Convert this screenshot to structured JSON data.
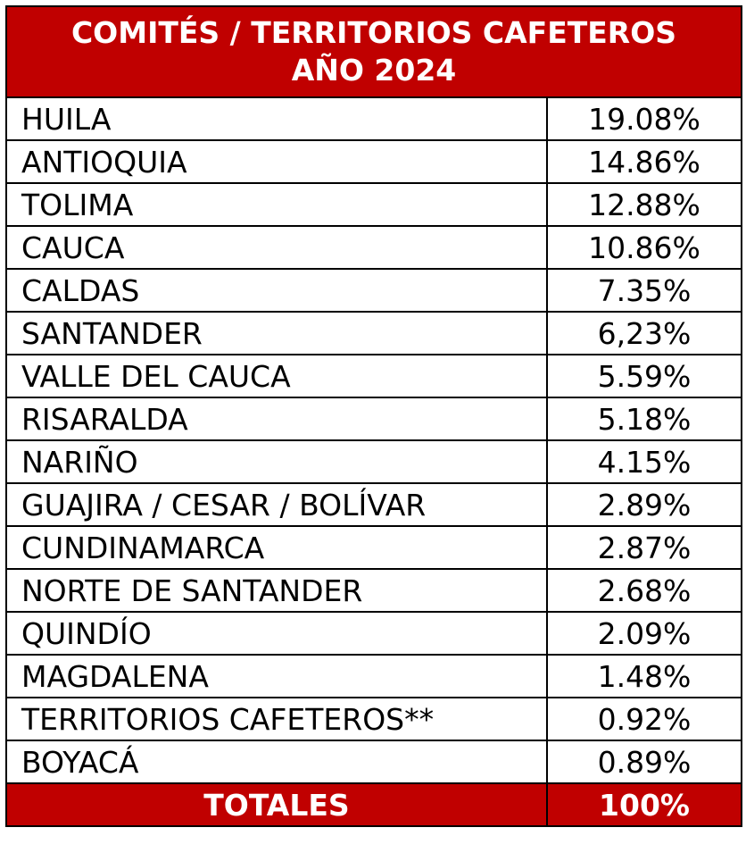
{
  "header": {
    "title_line1": "COMITÉS / TERRITORIOS CAFETEROS",
    "title_line2": "AÑO 2024"
  },
  "rows": [
    {
      "name": "HUILA",
      "value": "19.08%"
    },
    {
      "name": "ANTIOQUIA",
      "value": "14.86%"
    },
    {
      "name": "TOLIMA",
      "value": "12.88%"
    },
    {
      "name": "CAUCA",
      "value": "10.86%"
    },
    {
      "name": "CALDAS",
      "value": "7.35%"
    },
    {
      "name": "SANTANDER",
      "value": "6,23%"
    },
    {
      "name": "VALLE DEL CAUCA",
      "value": "5.59%"
    },
    {
      "name": "RISARALDA",
      "value": "5.18%"
    },
    {
      "name": "NARIÑO",
      "value": "4.15%"
    },
    {
      "name": "GUAJIRA / CESAR / BOLÍVAR",
      "value": "2.89%"
    },
    {
      "name": "CUNDINAMARCA",
      "value": "2.87%"
    },
    {
      "name": "NORTE DE SANTANDER",
      "value": "2.68%"
    },
    {
      "name": "QUINDÍO",
      "value": "2.09%"
    },
    {
      "name": "MAGDALENA",
      "value": "1.48%"
    },
    {
      "name": "TERRITORIOS CAFETEROS**",
      "value": "0.92%"
    },
    {
      "name": "BOYACÁ",
      "value": "0.89%"
    }
  ],
  "total": {
    "label": "TOTALES",
    "value": "100%"
  },
  "colors": {
    "header_bg": "#C00000",
    "header_text": "#FFFFFF",
    "border": "#000000"
  }
}
